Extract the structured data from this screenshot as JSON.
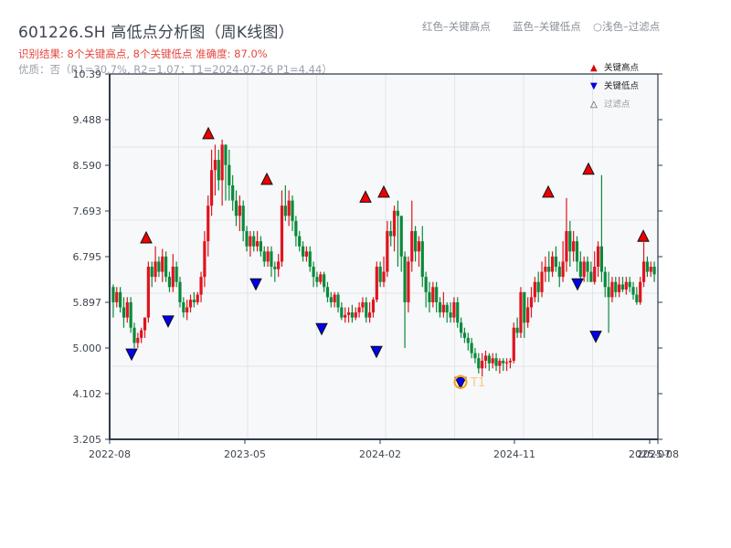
{
  "header": {
    "title": "601226.SH 高低点分析图（周K线图）",
    "result_line": "识别结果: 8个关键高点, 8个关键低点  准确度: 87.0%",
    "quality_line": "优质：否（R1=30.7%, R2=1.07；T1=2024-07-26 P1=4.44）"
  },
  "top_legend": {
    "red": "红色–关键高点",
    "blue": "蓝色–关键低点",
    "light": "○浅色–过滤点"
  },
  "legend": {
    "items": [
      {
        "symbol": "▲",
        "label": "关键高点",
        "color": "#e00000"
      },
      {
        "symbol": "▼",
        "label": "关键低点",
        "color": "#0000dd"
      },
      {
        "symbol": "△",
        "label": "过滤点",
        "color": "#999999"
      }
    ]
  },
  "colors": {
    "up": "#e0141e",
    "down": "#0a8a3a",
    "axis": "#2e3a4a",
    "grid": "#e1e4e8",
    "plot_bg": "#f6f8fa",
    "high_marker": "#ee0000",
    "low_marker": "#0000ee",
    "t1_ring": "#f5a623"
  },
  "chart_data": {
    "type": "candlestick",
    "title": "601226.SH 高低点分析图（周K线图）",
    "xlabel": "",
    "ylabel": "",
    "ylim": [
      3.205,
      10.39
    ],
    "yticks": [
      "3.205",
      "4.102",
      "5.000",
      "5.897",
      "6.795",
      "7.693",
      "8.590",
      "9.488",
      "10.39"
    ],
    "xticks": [
      {
        "label": "2022-08",
        "x": 120
      },
      {
        "label": "2023-05",
        "x": 268
      },
      {
        "label": "2024-02",
        "x": 416
      },
      {
        "label": "2024-11",
        "x": 563
      },
      {
        "label": "2025-07",
        "x": 711
      },
      {
        "label": "2025-08",
        "x": 720
      }
    ],
    "grid": true,
    "legend_position": "upper right",
    "candles": [
      [
        6.2,
        5.9,
        6.25,
        5.6
      ],
      [
        5.9,
        6.1,
        6.2,
        5.8
      ],
      [
        6.1,
        5.8,
        6.2,
        5.7
      ],
      [
        5.8,
        5.6,
        6.0,
        5.4
      ],
      [
        5.6,
        5.9,
        6.0,
        5.5
      ],
      [
        5.9,
        5.4,
        6.0,
        5.3
      ],
      [
        5.4,
        5.1,
        5.5,
        5.0
      ],
      [
        5.1,
        5.2,
        5.3,
        5.0
      ],
      [
        5.2,
        5.35,
        5.4,
        5.1
      ],
      [
        5.35,
        5.6,
        5.6,
        5.2
      ],
      [
        5.6,
        6.6,
        6.7,
        5.5
      ],
      [
        6.6,
        6.4,
        6.7,
        6.2
      ],
      [
        6.4,
        6.7,
        7.0,
        6.3
      ],
      [
        6.7,
        6.5,
        6.8,
        6.4
      ],
      [
        6.5,
        6.8,
        6.95,
        6.3
      ],
      [
        6.8,
        6.4,
        6.9,
        6.3
      ],
      [
        6.4,
        6.2,
        6.5,
        6.1
      ],
      [
        6.2,
        6.6,
        6.85,
        6.1
      ],
      [
        6.6,
        6.3,
        6.7,
        6.2
      ],
      [
        6.3,
        5.9,
        6.4,
        5.8
      ],
      [
        5.9,
        5.7,
        6.0,
        5.6
      ],
      [
        5.7,
        5.8,
        5.95,
        5.55
      ],
      [
        5.8,
        5.95,
        6.05,
        5.7
      ],
      [
        5.95,
        5.9,
        6.1,
        5.8
      ],
      [
        5.9,
        6.05,
        6.1,
        5.85
      ],
      [
        6.05,
        6.4,
        6.5,
        5.9
      ],
      [
        6.4,
        7.1,
        7.3,
        6.2
      ],
      [
        7.1,
        7.8,
        8.0,
        6.8
      ],
      [
        7.8,
        8.5,
        8.9,
        7.6
      ],
      [
        8.5,
        8.7,
        9.0,
        8.0
      ],
      [
        8.7,
        8.3,
        8.9,
        8.1
      ],
      [
        8.3,
        9.0,
        9.1,
        7.8
      ],
      [
        9.0,
        8.6,
        9.0,
        7.9
      ],
      [
        8.6,
        8.2,
        8.9,
        7.9
      ],
      [
        8.2,
        7.9,
        8.4,
        7.7
      ],
      [
        7.9,
        7.6,
        8.1,
        7.4
      ],
      [
        7.6,
        7.8,
        8.0,
        7.3
      ],
      [
        7.8,
        7.3,
        7.9,
        7.1
      ],
      [
        7.3,
        7.0,
        7.4,
        6.9
      ],
      [
        7.0,
        7.2,
        7.3,
        6.8
      ],
      [
        7.2,
        7.0,
        7.3,
        6.9
      ],
      [
        7.0,
        7.1,
        7.3,
        6.9
      ],
      [
        7.1,
        6.9,
        7.2,
        6.8
      ],
      [
        6.9,
        6.7,
        7.0,
        6.6
      ],
      [
        6.7,
        6.9,
        7.0,
        6.6
      ],
      [
        6.9,
        6.6,
        7.0,
        6.4
      ],
      [
        6.6,
        6.55,
        6.7,
        6.3
      ],
      [
        6.55,
        6.7,
        6.85,
        6.4
      ],
      [
        6.7,
        7.8,
        8.1,
        6.6
      ],
      [
        7.8,
        7.6,
        8.2,
        7.5
      ],
      [
        7.6,
        7.9,
        8.1,
        7.4
      ],
      [
        7.9,
        7.5,
        8.0,
        7.3
      ],
      [
        7.5,
        7.2,
        7.6,
        7.0
      ],
      [
        7.2,
        7.0,
        7.3,
        6.9
      ],
      [
        7.0,
        6.8,
        7.1,
        6.7
      ],
      [
        6.8,
        6.9,
        7.0,
        6.7
      ],
      [
        6.9,
        6.6,
        7.0,
        6.5
      ],
      [
        6.6,
        6.4,
        6.7,
        6.2
      ],
      [
        6.4,
        6.3,
        6.5,
        6.2
      ],
      [
        6.3,
        6.45,
        6.5,
        6.25
      ],
      [
        6.45,
        6.2,
        6.5,
        6.1
      ],
      [
        6.2,
        6.0,
        6.3,
        5.9
      ],
      [
        6.0,
        5.9,
        6.1,
        5.8
      ],
      [
        5.9,
        6.05,
        6.1,
        5.8
      ],
      [
        6.05,
        5.8,
        6.1,
        5.7
      ],
      [
        5.8,
        5.6,
        5.9,
        5.55
      ],
      [
        5.6,
        5.65,
        5.8,
        5.5
      ],
      [
        5.65,
        5.7,
        5.8,
        5.5
      ],
      [
        5.7,
        5.6,
        5.85,
        5.5
      ],
      [
        5.6,
        5.7,
        5.8,
        5.55
      ],
      [
        5.7,
        5.8,
        5.9,
        5.6
      ],
      [
        5.8,
        5.9,
        6.0,
        5.7
      ],
      [
        5.9,
        5.6,
        6.0,
        5.5
      ],
      [
        5.6,
        5.7,
        5.9,
        5.5
      ],
      [
        5.7,
        5.95,
        6.0,
        5.6
      ],
      [
        5.95,
        6.6,
        6.7,
        5.9
      ],
      [
        6.6,
        6.3,
        6.7,
        6.2
      ],
      [
        6.3,
        6.5,
        6.8,
        6.2
      ],
      [
        6.5,
        7.3,
        7.5,
        6.4
      ],
      [
        7.3,
        7.2,
        7.5,
        7.0
      ],
      [
        7.2,
        7.7,
        7.8,
        6.9
      ],
      [
        7.7,
        7.6,
        7.9,
        6.6
      ],
      [
        7.6,
        6.8,
        7.6,
        6.5
      ],
      [
        6.8,
        5.9,
        6.9,
        5.0
      ],
      [
        5.9,
        6.7,
        6.8,
        5.7
      ],
      [
        6.7,
        7.3,
        7.9,
        6.5
      ],
      [
        7.3,
        6.9,
        7.4,
        6.7
      ],
      [
        6.9,
        7.1,
        7.2,
        6.6
      ],
      [
        7.1,
        6.4,
        7.4,
        6.2
      ],
      [
        6.4,
        6.1,
        6.5,
        5.8
      ],
      [
        6.1,
        5.9,
        6.3,
        5.7
      ],
      [
        5.9,
        6.2,
        6.3,
        5.8
      ],
      [
        6.2,
        5.9,
        6.3,
        5.7
      ],
      [
        5.9,
        5.7,
        6.0,
        5.6
      ],
      [
        5.7,
        5.85,
        6.1,
        5.6
      ],
      [
        5.85,
        5.7,
        5.9,
        5.5
      ],
      [
        5.7,
        5.6,
        5.9,
        5.5
      ],
      [
        5.6,
        5.9,
        6.0,
        5.5
      ],
      [
        5.9,
        5.5,
        6.0,
        5.4
      ],
      [
        5.5,
        5.3,
        5.6,
        5.2
      ],
      [
        5.3,
        5.2,
        5.4,
        5.1
      ],
      [
        5.2,
        5.1,
        5.3,
        4.95
      ],
      [
        5.1,
        4.9,
        5.2,
        4.8
      ],
      [
        4.9,
        4.8,
        5.0,
        4.7
      ],
      [
        4.8,
        4.6,
        4.9,
        4.5
      ],
      [
        4.6,
        4.75,
        4.9,
        4.44
      ],
      [
        4.75,
        4.85,
        4.95,
        4.6
      ],
      [
        4.85,
        4.7,
        4.9,
        4.55
      ],
      [
        4.7,
        4.8,
        4.9,
        4.6
      ],
      [
        4.8,
        4.65,
        4.9,
        4.55
      ],
      [
        4.65,
        4.75,
        4.8,
        4.5
      ],
      [
        4.75,
        4.7,
        4.8,
        4.55
      ],
      [
        4.7,
        4.72,
        4.8,
        4.55
      ],
      [
        4.72,
        4.75,
        4.8,
        4.6
      ],
      [
        4.75,
        5.4,
        5.5,
        4.7
      ],
      [
        5.4,
        5.3,
        5.6,
        5.2
      ],
      [
        5.3,
        6.1,
        6.2,
        5.2
      ],
      [
        6.1,
        5.5,
        6.1,
        5.2
      ],
      [
        5.5,
        5.8,
        6.0,
        5.4
      ],
      [
        5.8,
        6.0,
        6.2,
        5.6
      ],
      [
        6.0,
        6.3,
        6.4,
        5.9
      ],
      [
        6.3,
        6.1,
        6.5,
        5.9
      ],
      [
        6.1,
        6.5,
        6.7,
        6.0
      ],
      [
        6.5,
        6.6,
        6.8,
        6.3
      ],
      [
        6.6,
        6.5,
        6.9,
        6.3
      ],
      [
        6.5,
        6.8,
        6.9,
        6.4
      ],
      [
        6.8,
        6.6,
        7.0,
        6.5
      ],
      [
        6.6,
        6.4,
        6.7,
        6.2
      ],
      [
        6.4,
        6.7,
        7.1,
        6.3
      ],
      [
        6.7,
        7.3,
        7.95,
        6.5
      ],
      [
        7.3,
        6.9,
        7.5,
        6.6
      ],
      [
        6.9,
        7.1,
        7.3,
        6.7
      ],
      [
        7.1,
        6.7,
        7.2,
        6.5
      ],
      [
        6.7,
        6.4,
        6.9,
        6.3
      ],
      [
        6.4,
        6.7,
        6.8,
        6.3
      ],
      [
        6.7,
        6.5,
        6.8,
        6.3
      ],
      [
        6.5,
        6.3,
        6.7,
        6.3
      ],
      [
        6.3,
        6.6,
        6.9,
        6.25
      ],
      [
        6.6,
        7.0,
        7.1,
        6.4
      ],
      [
        7.0,
        6.5,
        8.4,
        6.3
      ],
      [
        6.5,
        6.2,
        6.6,
        6.0
      ],
      [
        6.2,
        6.0,
        6.5,
        5.3
      ],
      [
        6.0,
        6.3,
        6.4,
        5.9
      ],
      [
        6.3,
        6.1,
        6.4,
        6.0
      ],
      [
        6.1,
        6.25,
        6.4,
        6.0
      ],
      [
        6.25,
        6.15,
        6.4,
        6.1
      ],
      [
        6.15,
        6.3,
        6.4,
        6.05
      ],
      [
        6.3,
        6.2,
        6.4,
        6.1
      ],
      [
        6.2,
        6.05,
        6.3,
        5.95
      ],
      [
        6.05,
        5.9,
        6.2,
        5.85
      ],
      [
        5.9,
        6.3,
        6.4,
        5.85
      ],
      [
        6.3,
        6.7,
        7.08,
        6.2
      ],
      [
        6.7,
        6.5,
        6.8,
        6.4
      ],
      [
        6.5,
        6.6,
        6.7,
        6.4
      ],
      [
        6.6,
        6.45,
        6.7,
        6.3
      ]
    ],
    "key_highs": [
      {
        "x": 160,
        "price": 7.05
      },
      {
        "x": 228,
        "price": 9.1
      },
      {
        "x": 292,
        "price": 8.2
      },
      {
        "x": 400,
        "price": 7.85
      },
      {
        "x": 420,
        "price": 7.95
      },
      {
        "x": 600,
        "price": 7.95
      },
      {
        "x": 644,
        "price": 8.4
      },
      {
        "x": 704,
        "price": 7.08
      }
    ],
    "key_lows": [
      {
        "x": 144,
        "price": 5.0
      },
      {
        "x": 184,
        "price": 5.65
      },
      {
        "x": 280,
        "price": 6.38
      },
      {
        "x": 352,
        "price": 5.5
      },
      {
        "x": 412,
        "price": 5.05
      },
      {
        "x": 504,
        "price": 4.44
      },
      {
        "x": 632,
        "price": 6.38
      },
      {
        "x": 652,
        "price": 5.35
      }
    ],
    "annotations": [
      {
        "label": "T1",
        "date": "2024-07-26",
        "price": 4.44,
        "x": 504
      }
    ]
  }
}
